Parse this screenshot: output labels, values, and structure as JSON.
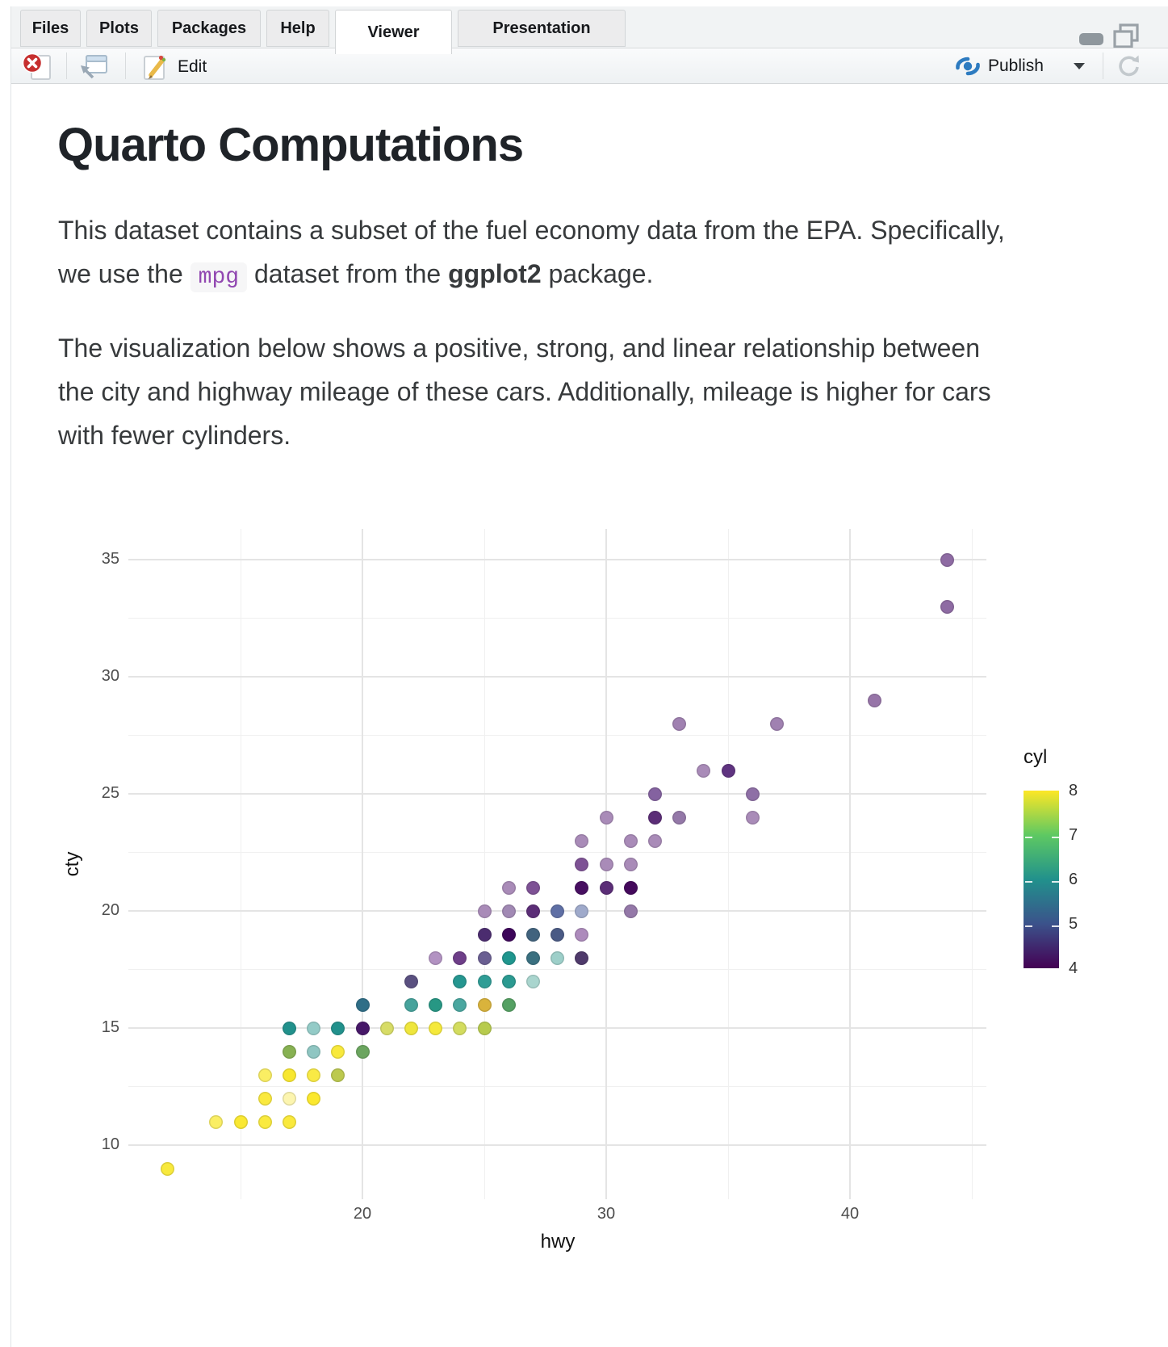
{
  "window": {
    "tabs": [
      "Files",
      "Plots",
      "Packages",
      "Help",
      "Viewer",
      "Presentation"
    ],
    "active_tab": "Viewer"
  },
  "toolbar": {
    "edit_label": "Edit",
    "publish_label": "Publish"
  },
  "document": {
    "title": "Quarto Computations",
    "para1_pre": "This dataset contains a subset of the fuel economy data from the EPA. Specifically, we use the ",
    "para1_code": "mpg",
    "para1_mid": " dataset from the ",
    "para1_bold": "ggplot2",
    "para1_post": " package.",
    "para2": "The visualization below shows a positive, strong, and linear relationship between the city and highway mileage of these cars. Additionally, mileage is higher for cars with fewer cylinders."
  },
  "colors": {
    "publish_blue": "#2d7bc0",
    "stop_red": "#c62f2f",
    "code_purple": "#9147b1"
  },
  "chart_data": {
    "type": "scatter",
    "title": "",
    "xlabel": "hwy",
    "ylabel": "cty",
    "xlim": [
      10.4,
      45.6
    ],
    "ylim": [
      7.7,
      36.3
    ],
    "x_ticks": [
      20,
      30,
      40
    ],
    "x_minor": [
      15,
      25,
      35,
      45
    ],
    "y_ticks": [
      10,
      15,
      20,
      25,
      30,
      35
    ],
    "y_minor": [
      12.5,
      17.5,
      22.5,
      27.5,
      32.5
    ],
    "grid": "on",
    "legend": {
      "title": "cyl",
      "position": "right",
      "ticks": [
        8,
        7,
        6,
        5,
        4
      ],
      "stops": [
        {
          "v": 8,
          "color": "#FDE725"
        },
        {
          "v": 7,
          "color": "#5EC962"
        },
        {
          "v": 6,
          "color": "#21918C"
        },
        {
          "v": 5,
          "color": "#3B528B"
        },
        {
          "v": 4,
          "color": "#440154"
        }
      ]
    },
    "points": [
      [
        12,
        9,
        "#F8E93C"
      ],
      [
        14,
        11,
        "#FAEE63"
      ],
      [
        15,
        11,
        "#FAE832"
      ],
      [
        16,
        11,
        "#FAEA3E"
      ],
      [
        17,
        11,
        "#FAE93C"
      ],
      [
        16,
        12,
        "#FAE93E"
      ],
      [
        17,
        12,
        "#FCF5AF"
      ],
      [
        18,
        12,
        "#FBE82E"
      ],
      [
        16,
        13,
        "#FAEE63"
      ],
      [
        17,
        13,
        "#F8E72F"
      ],
      [
        18,
        13,
        "#F9EA45"
      ],
      [
        19,
        13,
        "#BCC94E"
      ],
      [
        17,
        14,
        "#87B152"
      ],
      [
        18,
        14,
        "#8FC6C2"
      ],
      [
        19,
        14,
        "#F8E93C"
      ],
      [
        20,
        14,
        "#6BA55F"
      ],
      [
        17,
        15,
        "#21918C"
      ],
      [
        18,
        15,
        "#93CBC7"
      ],
      [
        19,
        15,
        "#21918C"
      ],
      [
        20,
        15,
        "#461768"
      ],
      [
        21,
        15,
        "#D7DC66"
      ],
      [
        22,
        15,
        "#EFE63C"
      ],
      [
        23,
        15,
        "#F5E93A"
      ],
      [
        24,
        15,
        "#D3DC5E"
      ],
      [
        25,
        15,
        "#B7CB4D"
      ],
      [
        20,
        16,
        "#2F6E87"
      ],
      [
        22,
        16,
        "#46A39C"
      ],
      [
        23,
        16,
        "#279784"
      ],
      [
        24,
        16,
        "#4AA7A0"
      ],
      [
        25,
        16,
        "#D9B33C"
      ],
      [
        26,
        16,
        "#55A163"
      ],
      [
        22,
        17,
        "#5A5080"
      ],
      [
        24,
        17,
        "#259690"
      ],
      [
        25,
        17,
        "#2F9D96"
      ],
      [
        26,
        17,
        "#2B9A91"
      ],
      [
        27,
        17,
        "#A9D5CE"
      ],
      [
        23,
        18,
        "#B292C2"
      ],
      [
        24,
        18,
        "#6E3E89"
      ],
      [
        25,
        18,
        "#6A5F92"
      ],
      [
        26,
        18,
        "#1F968E"
      ],
      [
        27,
        18,
        "#3A7080"
      ],
      [
        28,
        18,
        "#9DCFC9"
      ],
      [
        29,
        18,
        "#4F3A6B"
      ],
      [
        25,
        19,
        "#4B2C6F"
      ],
      [
        26,
        19,
        "#3C0559"
      ],
      [
        27,
        19,
        "#41637E"
      ],
      [
        28,
        19,
        "#4A5A85"
      ],
      [
        29,
        19,
        "#AD8BBC"
      ],
      [
        25,
        20,
        "#A98BB8"
      ],
      [
        26,
        20,
        "#A189B4"
      ],
      [
        27,
        20,
        "#5B2D77"
      ],
      [
        28,
        20,
        "#5F6FA5"
      ],
      [
        29,
        20,
        "#9FAACB"
      ],
      [
        31,
        20,
        "#9478A8"
      ],
      [
        26,
        21,
        "#A98BB8"
      ],
      [
        27,
        21,
        "#7E5295"
      ],
      [
        29,
        21,
        "#470E61"
      ],
      [
        30,
        21,
        "#5B2D77"
      ],
      [
        31,
        21,
        "#44095C"
      ],
      [
        29,
        22,
        "#7E5295"
      ],
      [
        30,
        22,
        "#A98BB8"
      ],
      [
        31,
        22,
        "#A98BB8"
      ],
      [
        29,
        23,
        "#A98BB8"
      ],
      [
        31,
        23,
        "#A98BB8"
      ],
      [
        32,
        23,
        "#A98BB8"
      ],
      [
        30,
        24,
        "#A98BB8"
      ],
      [
        32,
        24,
        "#5B2D77"
      ],
      [
        33,
        24,
        "#9478A8"
      ],
      [
        36,
        24,
        "#A98BB8"
      ],
      [
        32,
        25,
        "#8462A0"
      ],
      [
        36,
        25,
        "#8E6FA6"
      ],
      [
        34,
        26,
        "#A98BB8"
      ],
      [
        35,
        26,
        "#5F3380"
      ],
      [
        33,
        28,
        "#A081B1"
      ],
      [
        37,
        28,
        "#A081B1"
      ],
      [
        41,
        29,
        "#9775A8"
      ],
      [
        44,
        33,
        "#8E6BA3"
      ],
      [
        44,
        35,
        "#8E6BA3"
      ]
    ]
  }
}
